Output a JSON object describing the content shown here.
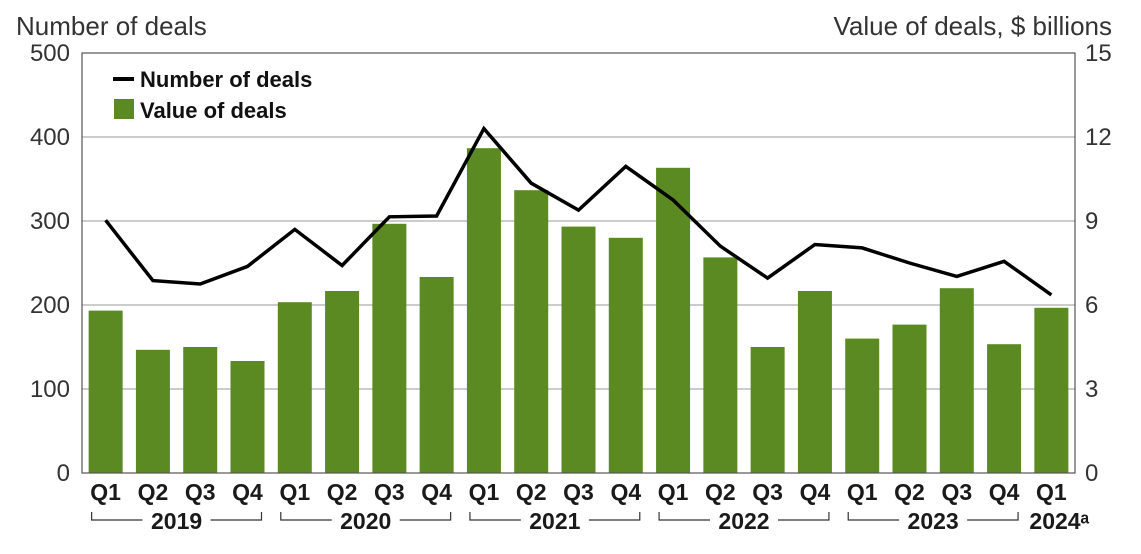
{
  "chart_data": {
    "type": "bar",
    "categories": [
      "Q1",
      "Q2",
      "Q3",
      "Q4",
      "Q1",
      "Q2",
      "Q3",
      "Q4",
      "Q1",
      "Q2",
      "Q3",
      "Q4",
      "Q1",
      "Q2",
      "Q3",
      "Q4",
      "Q1",
      "Q2",
      "Q3",
      "Q4",
      "Q1"
    ],
    "year_groups": [
      {
        "label": "2019",
        "start": 0,
        "end": 3
      },
      {
        "label": "2020",
        "start": 4,
        "end": 7
      },
      {
        "label": "2021",
        "start": 8,
        "end": 11
      },
      {
        "label": "2022",
        "start": 12,
        "end": 15
      },
      {
        "label": "2023",
        "start": 16,
        "end": 19
      },
      {
        "label": "2024ᵃ",
        "start": 20,
        "end": 20
      }
    ],
    "series": [
      {
        "name": "Value of deals",
        "type": "bar",
        "axis": "right",
        "color": "#5b8a22",
        "values": [
          5.8,
          4.4,
          4.5,
          4.0,
          6.1,
          6.5,
          8.9,
          7.0,
          11.6,
          10.1,
          8.8,
          8.4,
          10.9,
          7.7,
          4.5,
          6.5,
          4.8,
          5.3,
          6.6,
          4.6,
          5.9
        ]
      },
      {
        "name": "Number of deals",
        "type": "line",
        "axis": "left",
        "color": "#000000",
        "values": [
          301,
          229,
          225,
          246,
          290,
          247,
          305,
          306,
          410,
          345,
          313,
          365,
          325,
          270,
          232,
          272,
          268,
          250,
          234,
          252,
          212
        ]
      }
    ],
    "ylabel_left": "Number of deals",
    "ylabel_right": "Value of deals, $ billions",
    "ylim_left": [
      0,
      500
    ],
    "ylim_right": [
      0,
      15
    ],
    "yticks_left": [
      0,
      100,
      200,
      300,
      400,
      500
    ],
    "yticks_right": [
      0,
      3,
      6,
      9,
      12,
      15
    ],
    "grid": true,
    "legend_placement": "top-left"
  }
}
